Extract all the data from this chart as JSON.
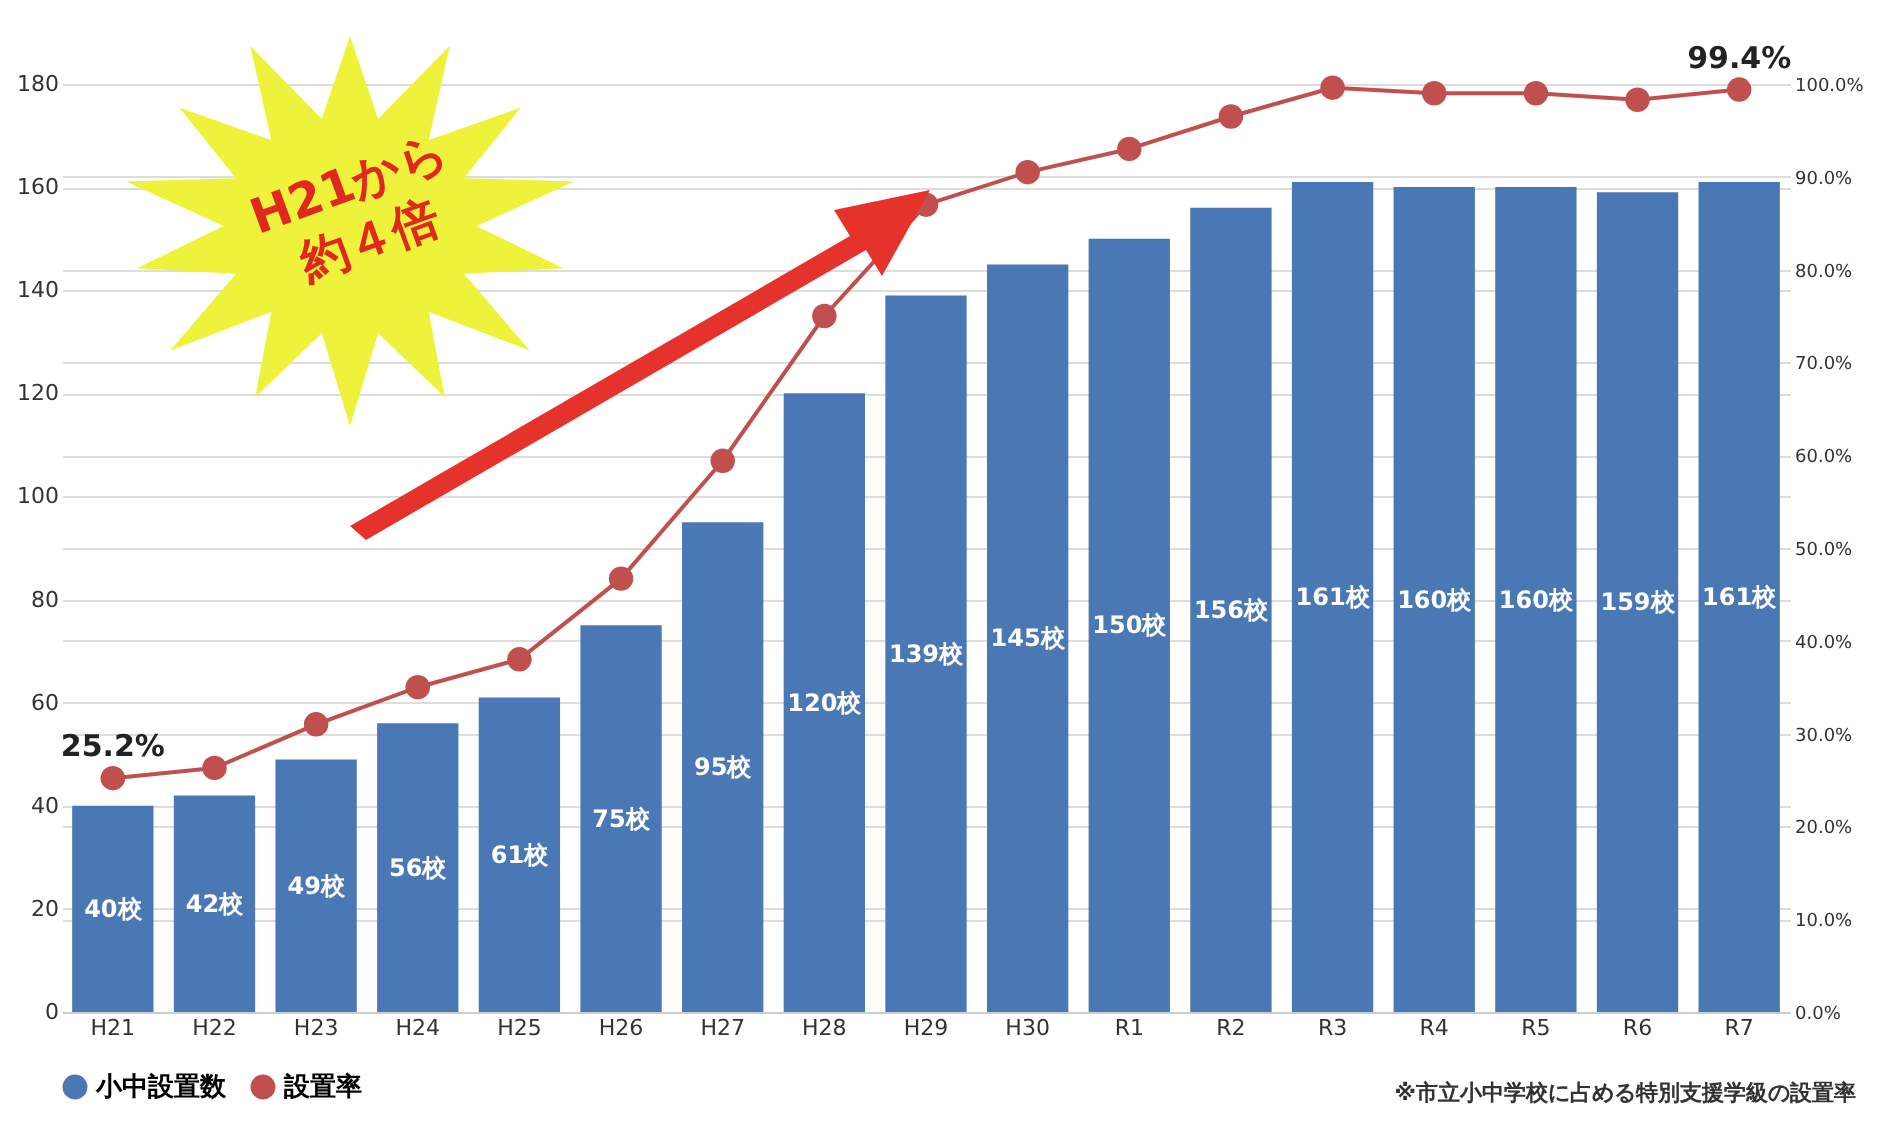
{
  "chart_data": {
    "type": "bar",
    "categories": [
      "H21",
      "H22",
      "H23",
      "H24",
      "H25",
      "H26",
      "H27",
      "H28",
      "H29",
      "H30",
      "R1",
      "R2",
      "R3",
      "R4",
      "R5",
      "R6",
      "R7"
    ],
    "series": [
      {
        "name": "小中設置数",
        "color": "#4a78b4",
        "values": [
          40,
          42,
          49,
          56,
          61,
          75,
          95,
          120,
          139,
          145,
          150,
          156,
          161,
          160,
          160,
          159,
          161
        ],
        "value_labels": [
          "40校",
          "42校",
          "49校",
          "56校",
          "61校",
          "75校",
          "95校",
          "120校",
          "139校",
          "145校",
          "150校",
          "156校",
          "161校",
          "160校",
          "160校",
          "159校",
          "161校"
        ]
      },
      {
        "name": "設置率",
        "type": "line",
        "axis": "y2",
        "color": "#c0504d",
        "values": [
          25.2,
          26.3,
          31,
          35,
          38,
          46.7,
          59.4,
          75,
          87,
          90.5,
          93,
          96.5,
          99.6,
          99,
          99,
          98.3,
          99.4
        ],
        "value_labels": [
          "25.2%",
          null,
          null,
          null,
          null,
          null,
          null,
          null,
          null,
          null,
          null,
          null,
          null,
          null,
          null,
          null,
          "99.4%"
        ]
      }
    ],
    "ylim": [
      0,
      180
    ],
    "yticks": [
      0,
      20,
      40,
      60,
      80,
      100,
      120,
      140,
      160,
      180
    ],
    "y2lim": [
      0,
      100
    ],
    "y2ticks": [
      {
        "value": 0,
        "label": "0.0%"
      },
      {
        "value": 10,
        "label": "10.0%"
      },
      {
        "value": 20,
        "label": "20.0%"
      },
      {
        "value": 30,
        "label": "30.0%"
      },
      {
        "value": 40,
        "label": "40.0%"
      },
      {
        "value": 50,
        "label": "50.0%"
      },
      {
        "value": 60,
        "label": "60.0%"
      },
      {
        "value": 70,
        "label": "70.0%"
      },
      {
        "value": 80,
        "label": "80.0%"
      },
      {
        "value": 90,
        "label": "90.0%"
      },
      {
        "value": 100,
        "label": "100.0%"
      }
    ],
    "grid": "y",
    "legend": "bottom",
    "marker": "circle",
    "annotations": [
      "H21から約４倍",
      "※市立小中学校に占める特別支援学級の設置率"
    ]
  }
}
